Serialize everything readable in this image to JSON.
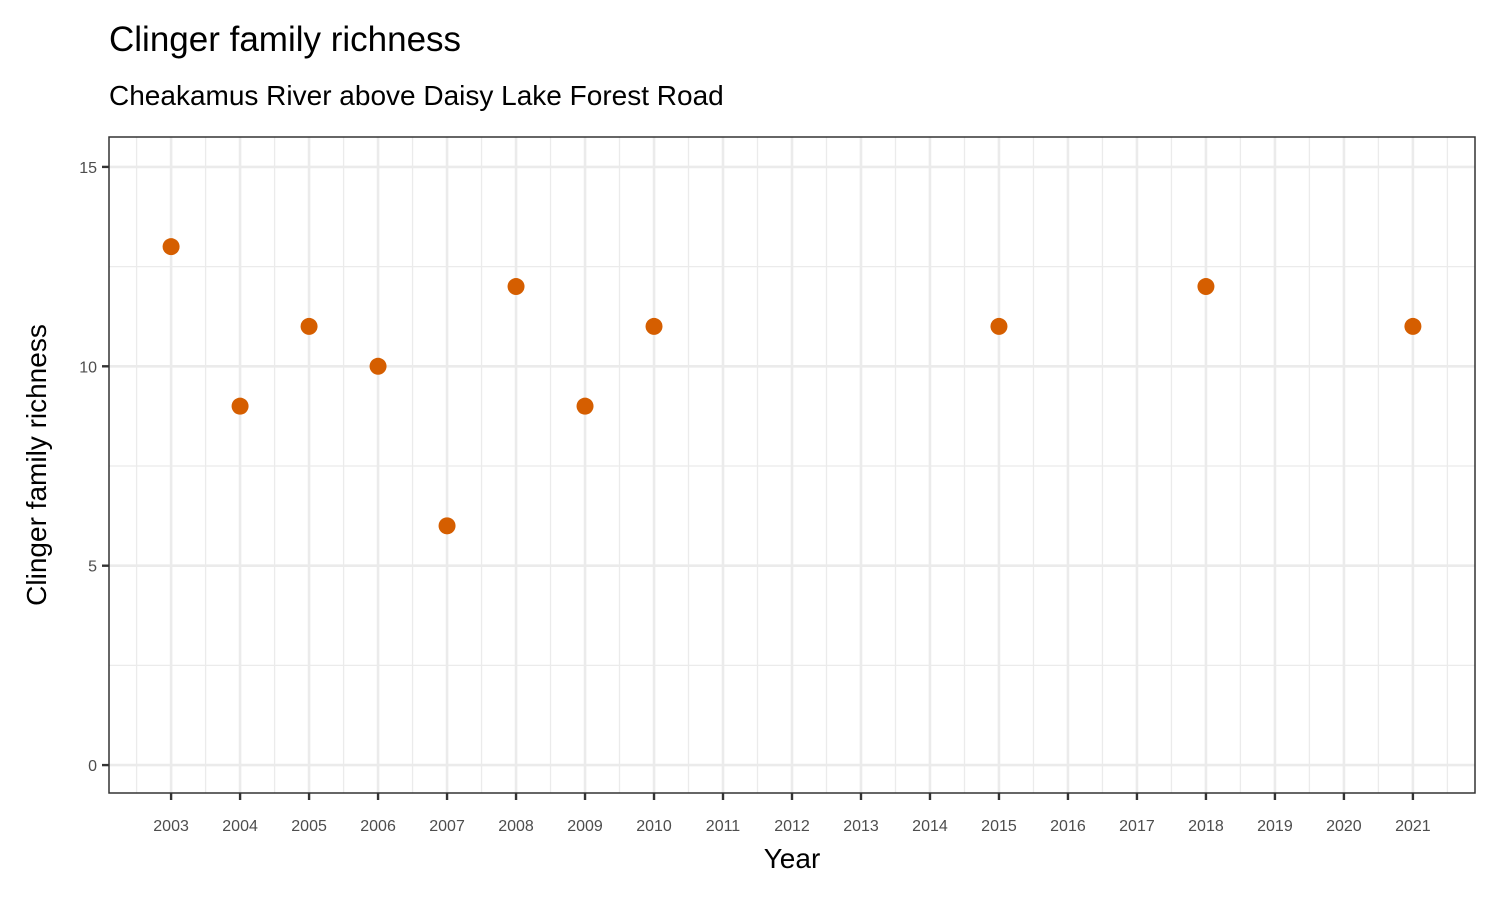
{
  "chart_data": {
    "type": "scatter",
    "title": "Clinger family richness",
    "subtitle": "Cheakamus River above Daisy Lake Forest Road",
    "xlabel": "Year",
    "ylabel": "Clinger family richness",
    "x_ticks": [
      2003,
      2004,
      2005,
      2006,
      2007,
      2008,
      2009,
      2010,
      2011,
      2012,
      2013,
      2014,
      2015,
      2016,
      2017,
      2018,
      2019,
      2020,
      2021
    ],
    "y_ticks": [
      0,
      5,
      10,
      15
    ],
    "xlim": [
      2002.1,
      2021.9
    ],
    "ylim": [
      -0.7,
      15.75
    ],
    "grid": true,
    "point_color": "#D55E00",
    "points": [
      {
        "x": 2003,
        "y": 13
      },
      {
        "x": 2004,
        "y": 9
      },
      {
        "x": 2005,
        "y": 11
      },
      {
        "x": 2006,
        "y": 10
      },
      {
        "x": 2007,
        "y": 6
      },
      {
        "x": 2008,
        "y": 12
      },
      {
        "x": 2009,
        "y": 9
      },
      {
        "x": 2010,
        "y": 11
      },
      {
        "x": 2015,
        "y": 11
      },
      {
        "x": 2018,
        "y": 12
      },
      {
        "x": 2021,
        "y": 11
      }
    ]
  }
}
